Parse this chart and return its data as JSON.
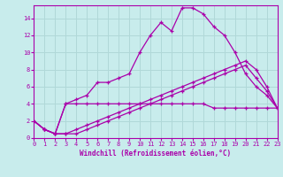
{
  "xlabel": "Windchill (Refroidissement éolien,°C)",
  "background_color": "#c8ecec",
  "grid_color": "#b0d8d8",
  "line_color": "#aa00aa",
  "xlim": [
    0,
    23
  ],
  "ylim": [
    0,
    15.5
  ],
  "xticks": [
    0,
    1,
    2,
    3,
    4,
    5,
    6,
    7,
    8,
    9,
    10,
    11,
    12,
    13,
    14,
    15,
    16,
    17,
    18,
    19,
    20,
    21,
    22,
    23
  ],
  "yticks": [
    0,
    2,
    4,
    6,
    8,
    10,
    12,
    14
  ],
  "series": [
    [
      2,
      1,
      0.5,
      4,
      4.5,
      5,
      6.5,
      6.5,
      7,
      7.5,
      10,
      12,
      13.5,
      12.5,
      15.2,
      15.2,
      14.5,
      13,
      12,
      10,
      7.5,
      6,
      5,
      3.5
    ],
    [
      2,
      1,
      0.5,
      4,
      4,
      4,
      4,
      4,
      4,
      4,
      4,
      4,
      4,
      4,
      4,
      4,
      4,
      3.5,
      3.5,
      3.5,
      3.5,
      3.5,
      3.5,
      3.5
    ],
    [
      2,
      1,
      0.5,
      0.5,
      1,
      1.5,
      2,
      2.5,
      3,
      3.5,
      4,
      4.5,
      5,
      5.5,
      6,
      6.5,
      7,
      7.5,
      8,
      8.5,
      9.0,
      8,
      6,
      3.5
    ],
    [
      2,
      1,
      0.5,
      0.5,
      0.5,
      1,
      1.5,
      2,
      2.5,
      3,
      3.5,
      4,
      4.5,
      5,
      5.5,
      6,
      6.5,
      7,
      7.5,
      8,
      8.5,
      7,
      5.5,
      3.5
    ]
  ]
}
